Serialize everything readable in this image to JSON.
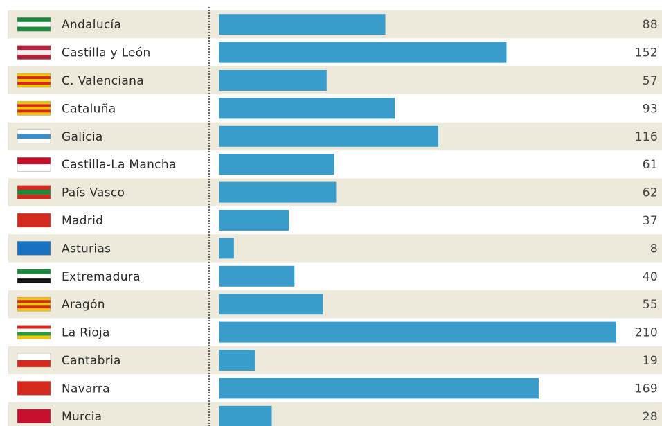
{
  "chart_data": {
    "type": "hbar",
    "categories": [
      "Andalucía",
      "Castilla y León",
      "C. Valenciana",
      "Cataluña",
      "Galicia",
      "Castilla-La Mancha",
      "País Vasco",
      "Madrid",
      "Asturias",
      "Extremadura",
      "Aragón",
      "La Rioja",
      "Cantabria",
      "Navarra",
      "Murcia"
    ],
    "values": [
      88,
      152,
      57,
      93,
      116,
      61,
      62,
      37,
      8,
      40,
      55,
      210,
      19,
      169,
      28
    ],
    "color": "#3a9ccb",
    "xlim": [
      0,
      210
    ]
  }
}
